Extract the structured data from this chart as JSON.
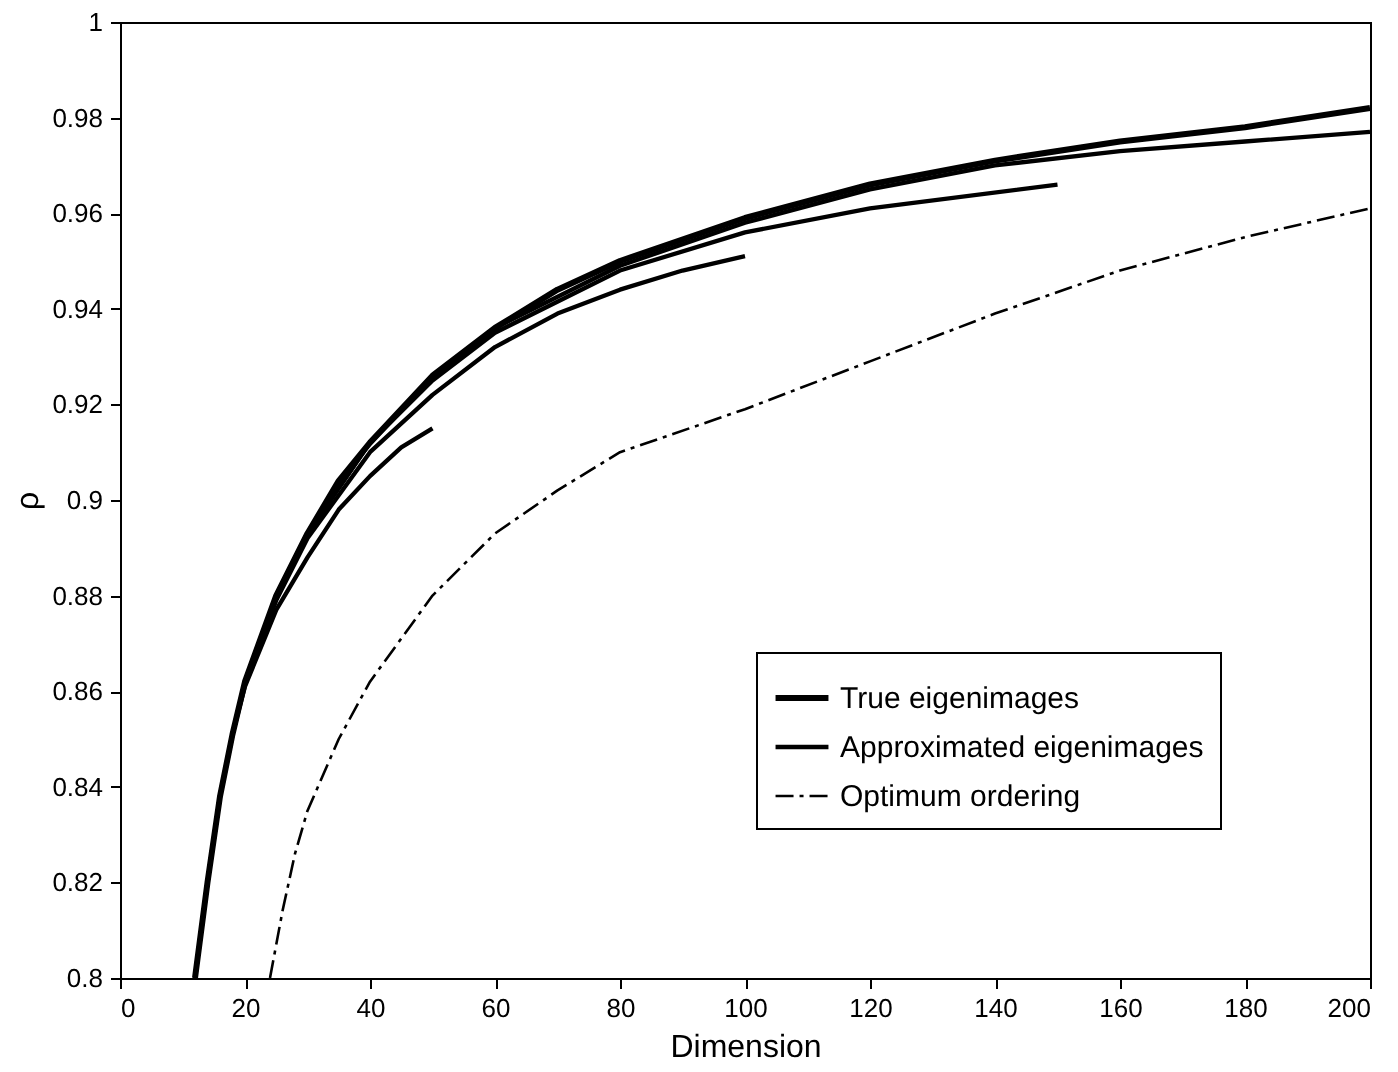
{
  "chart_data": {
    "type": "line",
    "xlabel": "Dimension",
    "ylabel": "ρ",
    "xlim": [
      0,
      200
    ],
    "ylim": [
      0.8,
      1
    ],
    "xticks": [
      0,
      20,
      40,
      60,
      80,
      100,
      120,
      140,
      160,
      180,
      200
    ],
    "yticks": [
      0.8,
      0.82,
      0.84,
      0.86,
      0.88,
      0.9,
      0.92,
      0.94,
      0.96,
      0.98,
      1
    ],
    "grid": false,
    "legend": "bottom right",
    "marker": "none",
    "series": [
      {
        "name": "True eigenimages",
        "color": "#000000",
        "line_style": "solid",
        "x": [
          12,
          14,
          16,
          18,
          20,
          25,
          30,
          35,
          40,
          50,
          60,
          70,
          80,
          100,
          120,
          140,
          160,
          180,
          200
        ],
        "values": [
          0.8,
          0.82,
          0.838,
          0.851,
          0.862,
          0.88,
          0.893,
          0.904,
          0.912,
          0.926,
          0.936,
          0.944,
          0.95,
          0.959,
          0.966,
          0.971,
          0.975,
          0.978,
          0.982
        ]
      },
      {
        "name": "Approximated eigenimages",
        "color": "#000000",
        "line_style": "solid",
        "x": [
          12,
          14,
          16,
          18,
          20,
          25,
          30,
          35,
          40,
          45,
          50
        ],
        "values": [
          0.8,
          0.82,
          0.838,
          0.851,
          0.861,
          0.877,
          0.888,
          0.898,
          0.905,
          0.911,
          0.915
        ]
      },
      {
        "color": "#000000",
        "line_style": "solid",
        "x": [
          12,
          14,
          16,
          18,
          20,
          25,
          30,
          40,
          50,
          60,
          70,
          80,
          90,
          100
        ],
        "values": [
          0.8,
          0.82,
          0.838,
          0.851,
          0.862,
          0.879,
          0.892,
          0.91,
          0.922,
          0.932,
          0.939,
          0.944,
          0.948,
          0.951
        ]
      },
      {
        "color": "#000000",
        "line_style": "solid",
        "x": [
          12,
          14,
          16,
          18,
          20,
          25,
          30,
          40,
          50,
          60,
          80,
          100,
          120,
          150
        ],
        "values": [
          0.8,
          0.82,
          0.838,
          0.851,
          0.862,
          0.88,
          0.893,
          0.912,
          0.925,
          0.935,
          0.948,
          0.956,
          0.961,
          0.966
        ]
      },
      {
        "color": "#000000",
        "line_style": "solid",
        "x": [
          12,
          14,
          16,
          18,
          20,
          25,
          30,
          40,
          50,
          60,
          80,
          100,
          120,
          140,
          160,
          180,
          200
        ],
        "values": [
          0.8,
          0.82,
          0.838,
          0.851,
          0.862,
          0.88,
          0.893,
          0.912,
          0.926,
          0.936,
          0.949,
          0.958,
          0.965,
          0.97,
          0.973,
          0.975,
          0.977
        ]
      },
      {
        "name": "Optimum ordering",
        "color": "#000000",
        "line_style": "dashed",
        "x": [
          24,
          26,
          28,
          30,
          35,
          40,
          50,
          60,
          70,
          80,
          100,
          120,
          140,
          160,
          180,
          200
        ],
        "values": [
          0.8,
          0.814,
          0.826,
          0.835,
          0.85,
          0.862,
          0.88,
          0.893,
          0.902,
          0.91,
          0.919,
          0.929,
          0.939,
          0.948,
          0.955,
          0.961
        ]
      }
    ]
  }
}
